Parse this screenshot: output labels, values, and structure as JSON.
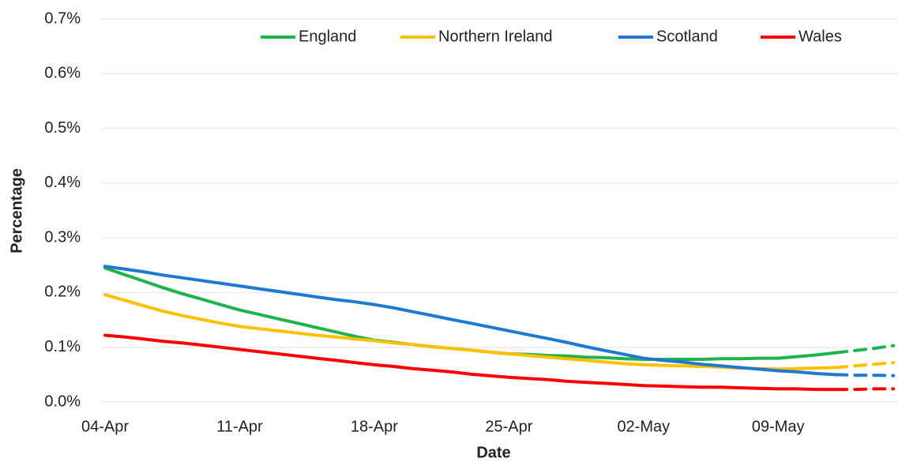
{
  "chart_data": {
    "type": "line",
    "x_label": "Date",
    "y_label": "Percentage",
    "categories": [
      "04-Apr",
      null,
      null,
      null,
      null,
      null,
      null,
      "11-Apr",
      null,
      null,
      null,
      null,
      null,
      null,
      "18-Apr",
      null,
      null,
      null,
      null,
      null,
      null,
      "25-Apr",
      null,
      null,
      null,
      null,
      null,
      null,
      "02-May",
      null,
      null,
      null,
      null,
      null,
      null,
      "09-May",
      null,
      null,
      null,
      null,
      null,
      null
    ],
    "dash_from_index": 38,
    "series": [
      {
        "name": "England",
        "color": "#20b24c",
        "values": [
          0.245,
          0.233,
          0.221,
          0.209,
          0.198,
          0.188,
          0.178,
          0.168,
          0.16,
          0.152,
          0.144,
          0.136,
          0.128,
          0.12,
          0.113,
          0.109,
          0.105,
          0.101,
          0.098,
          0.095,
          0.091,
          0.088,
          0.087,
          0.085,
          0.084,
          0.082,
          0.081,
          0.079,
          0.078,
          0.078,
          0.078,
          0.078,
          0.079,
          0.079,
          0.08,
          0.08,
          0.083,
          0.086,
          0.09,
          0.094,
          0.098,
          0.103
        ]
      },
      {
        "name": "Northern Ireland",
        "color": "#ffc000",
        "values": [
          0.196,
          0.186,
          0.176,
          0.166,
          0.158,
          0.151,
          0.144,
          0.138,
          0.134,
          0.13,
          0.126,
          0.122,
          0.119,
          0.115,
          0.112,
          0.108,
          0.105,
          0.101,
          0.098,
          0.095,
          0.091,
          0.088,
          0.085,
          0.082,
          0.079,
          0.076,
          0.073,
          0.07,
          0.068,
          0.067,
          0.066,
          0.065,
          0.064,
          0.062,
          0.061,
          0.06,
          0.061,
          0.062,
          0.063,
          0.066,
          0.069,
          0.072
        ]
      },
      {
        "name": "Scotland",
        "color": "#1f78d1",
        "values": [
          0.248,
          0.243,
          0.238,
          0.232,
          0.227,
          0.222,
          0.217,
          0.212,
          0.207,
          0.202,
          0.197,
          0.192,
          0.187,
          0.183,
          0.178,
          0.172,
          0.165,
          0.158,
          0.151,
          0.144,
          0.137,
          0.13,
          0.123,
          0.116,
          0.109,
          0.101,
          0.094,
          0.087,
          0.08,
          0.076,
          0.073,
          0.069,
          0.066,
          0.063,
          0.06,
          0.057,
          0.055,
          0.052,
          0.05,
          0.049,
          0.049,
          0.048
        ]
      },
      {
        "name": "Wales",
        "color": "#ff0000",
        "values": [
          0.122,
          0.119,
          0.115,
          0.111,
          0.108,
          0.104,
          0.1,
          0.096,
          0.092,
          0.088,
          0.084,
          0.08,
          0.076,
          0.072,
          0.068,
          0.065,
          0.061,
          0.058,
          0.055,
          0.051,
          0.048,
          0.045,
          0.043,
          0.041,
          0.038,
          0.036,
          0.034,
          0.032,
          0.03,
          0.029,
          0.028,
          0.027,
          0.027,
          0.026,
          0.025,
          0.024,
          0.024,
          0.023,
          0.023,
          0.023,
          0.024,
          0.024
        ]
      }
    ],
    "ylim": [
      0,
      0.7
    ],
    "yticks": [
      {
        "value": 0,
        "label": "0.0%"
      },
      {
        "value": 0.1,
        "label": "0.1%"
      },
      {
        "value": 0.2,
        "label": "0.2%"
      },
      {
        "value": 0.3,
        "label": "0.3%"
      },
      {
        "value": 0.4,
        "label": "0.4%"
      },
      {
        "value": 0.5,
        "label": "0.5%"
      },
      {
        "value": 0.6,
        "label": "0.6%"
      },
      {
        "value": 0.7,
        "label": "0.7%"
      }
    ],
    "grid": true,
    "legend": "top"
  }
}
